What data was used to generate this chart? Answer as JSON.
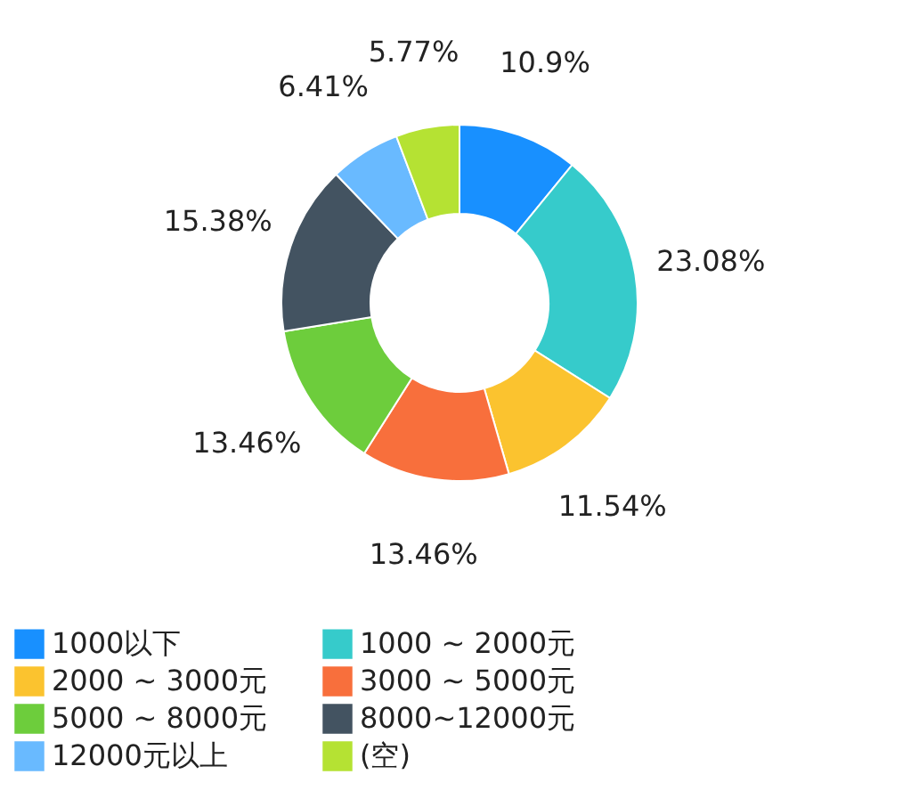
{
  "chart_data": {
    "type": "donut",
    "categories": [
      "1000以下",
      "1000 ~ 2000元",
      "2000 ~ 3000元",
      "3000 ~ 5000元",
      "5000 ~ 8000元",
      "8000~12000元",
      "12000元以上",
      "(空)"
    ],
    "values": [
      10.9,
      23.08,
      11.54,
      13.46,
      13.46,
      15.38,
      6.41,
      5.77
    ],
    "value_labels": [
      "10.9%",
      "23.08%",
      "11.54%",
      "13.46%",
      "13.46%",
      "15.38%",
      "6.41%",
      "5.77%"
    ],
    "colors": [
      "#1890ff",
      "#36cbcb",
      "#fbc32f",
      "#f86f3c",
      "#6dcd3c",
      "#435361",
      "#69baff",
      "#b5e233"
    ],
    "legend": "bottom"
  }
}
